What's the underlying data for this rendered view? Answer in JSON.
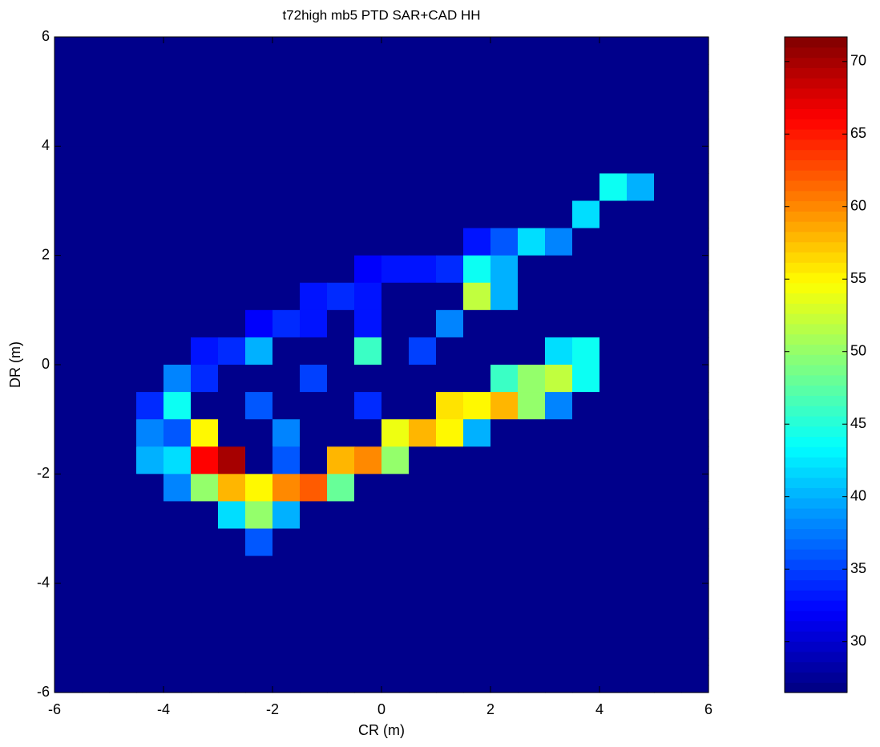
{
  "chart_data": {
    "type": "heatmap",
    "title": "t72high mb5 PTD SAR+CAD HH",
    "x_label": "CR (m)",
    "y_label": "DR (m)",
    "xlim": [
      -6,
      6
    ],
    "ylim": [
      -6,
      6
    ],
    "xticks": [
      -6,
      -4,
      -2,
      0,
      2,
      4,
      6
    ],
    "yticks": [
      -6,
      -4,
      -2,
      0,
      2,
      4,
      6
    ],
    "colormap": "jet",
    "clim": [
      26.5,
      71.7
    ],
    "cticks": [
      30,
      35,
      40,
      45,
      50,
      55,
      60,
      65,
      70
    ],
    "z": [
      [
        27,
        27,
        27,
        27,
        27,
        27,
        27,
        27,
        27,
        27,
        27,
        27,
        27,
        27,
        27,
        27,
        27,
        27,
        27,
        27,
        27,
        27,
        27,
        27
      ],
      [
        27,
        27,
        27,
        27,
        27,
        27,
        27,
        27,
        27,
        27,
        27,
        27,
        27,
        27,
        27,
        27,
        27,
        27,
        27,
        27,
        27,
        27,
        27,
        27
      ],
      [
        27,
        27,
        27,
        27,
        27,
        27,
        27,
        27,
        27,
        27,
        27,
        27,
        27,
        27,
        27,
        27,
        27,
        27,
        27,
        27,
        27,
        27,
        27,
        27
      ],
      [
        27,
        27,
        27,
        27,
        27,
        27,
        27,
        27,
        27,
        27,
        27,
        27,
        27,
        27,
        27,
        27,
        27,
        27,
        27,
        27,
        27,
        27,
        27,
        27
      ],
      [
        27,
        27,
        27,
        27,
        27,
        27,
        27,
        27,
        27,
        27,
        27,
        27,
        27,
        27,
        27,
        27,
        27,
        27,
        27,
        27,
        27,
        27,
        27,
        27
      ],
      [
        27,
        27,
        27,
        27,
        27,
        27,
        27,
        27,
        27,
        27,
        27,
        27,
        27,
        27,
        27,
        27,
        27,
        27,
        27,
        27,
        44,
        40,
        27,
        27
      ],
      [
        27,
        27,
        27,
        27,
        27,
        27,
        27,
        27,
        27,
        27,
        27,
        27,
        27,
        27,
        27,
        27,
        27,
        27,
        27,
        42,
        27,
        27,
        27,
        27
      ],
      [
        27,
        27,
        27,
        27,
        27,
        27,
        27,
        27,
        27,
        27,
        27,
        27,
        27,
        27,
        27,
        33,
        36,
        42,
        38,
        27,
        27,
        27,
        27,
        27
      ],
      [
        27,
        27,
        27,
        27,
        27,
        27,
        27,
        27,
        27,
        27,
        27,
        32,
        33,
        33,
        34,
        44,
        40,
        27,
        27,
        27,
        27,
        27,
        27,
        27
      ],
      [
        27,
        27,
        27,
        27,
        27,
        27,
        27,
        27,
        27,
        33,
        34,
        33,
        27,
        27,
        27,
        52,
        40,
        27,
        27,
        27,
        27,
        27,
        27,
        27
      ],
      [
        27,
        27,
        27,
        27,
        27,
        27,
        27,
        32,
        34,
        33,
        27,
        33,
        27,
        27,
        38,
        27,
        27,
        27,
        27,
        27,
        27,
        27,
        27,
        27
      ],
      [
        27,
        27,
        27,
        27,
        27,
        33,
        34,
        40,
        27,
        27,
        27,
        46,
        27,
        35,
        27,
        27,
        27,
        27,
        42,
        44,
        27,
        27,
        27,
        27
      ],
      [
        27,
        27,
        27,
        27,
        38,
        34,
        27,
        27,
        27,
        35,
        27,
        27,
        27,
        27,
        27,
        27,
        46,
        50,
        52,
        44,
        27,
        27,
        27,
        27
      ],
      [
        27,
        27,
        27,
        34,
        44,
        27,
        27,
        36,
        27,
        27,
        27,
        34,
        27,
        27,
        56,
        55,
        58,
        50,
        38,
        27,
        27,
        27,
        27,
        27
      ],
      [
        27,
        27,
        27,
        38,
        36,
        55,
        27,
        27,
        38,
        27,
        27,
        27,
        54,
        58,
        55,
        40,
        27,
        27,
        27,
        27,
        27,
        27,
        27,
        27
      ],
      [
        27,
        27,
        27,
        40,
        42,
        66,
        70,
        27,
        36,
        27,
        58,
        60,
        50,
        27,
        27,
        27,
        27,
        27,
        27,
        27,
        27,
        27,
        27,
        27
      ],
      [
        27,
        27,
        27,
        27,
        38,
        50,
        58,
        55,
        60,
        62,
        48,
        27,
        27,
        27,
        27,
        27,
        27,
        27,
        27,
        27,
        27,
        27,
        27,
        27
      ],
      [
        27,
        27,
        27,
        27,
        27,
        27,
        42,
        50,
        40,
        27,
        27,
        27,
        27,
        27,
        27,
        27,
        27,
        27,
        27,
        27,
        27,
        27,
        27,
        27
      ],
      [
        27,
        27,
        27,
        27,
        27,
        27,
        27,
        36,
        27,
        27,
        27,
        27,
        27,
        27,
        27,
        27,
        27,
        27,
        27,
        27,
        27,
        27,
        27,
        27
      ],
      [
        27,
        27,
        27,
        27,
        27,
        27,
        27,
        27,
        27,
        27,
        27,
        27,
        27,
        27,
        27,
        27,
        27,
        27,
        27,
        27,
        27,
        27,
        27,
        27
      ],
      [
        27,
        27,
        27,
        27,
        27,
        27,
        27,
        27,
        27,
        27,
        27,
        27,
        27,
        27,
        27,
        27,
        27,
        27,
        27,
        27,
        27,
        27,
        27,
        27
      ],
      [
        27,
        27,
        27,
        27,
        27,
        27,
        27,
        27,
        27,
        27,
        27,
        27,
        27,
        27,
        27,
        27,
        27,
        27,
        27,
        27,
        27,
        27,
        27,
        27
      ],
      [
        27,
        27,
        27,
        27,
        27,
        27,
        27,
        27,
        27,
        27,
        27,
        27,
        27,
        27,
        27,
        27,
        27,
        27,
        27,
        27,
        27,
        27,
        27,
        27
      ],
      [
        27,
        27,
        27,
        27,
        27,
        27,
        27,
        27,
        27,
        27,
        27,
        27,
        27,
        27,
        27,
        27,
        27,
        27,
        27,
        27,
        27,
        27,
        27,
        27
      ]
    ]
  }
}
